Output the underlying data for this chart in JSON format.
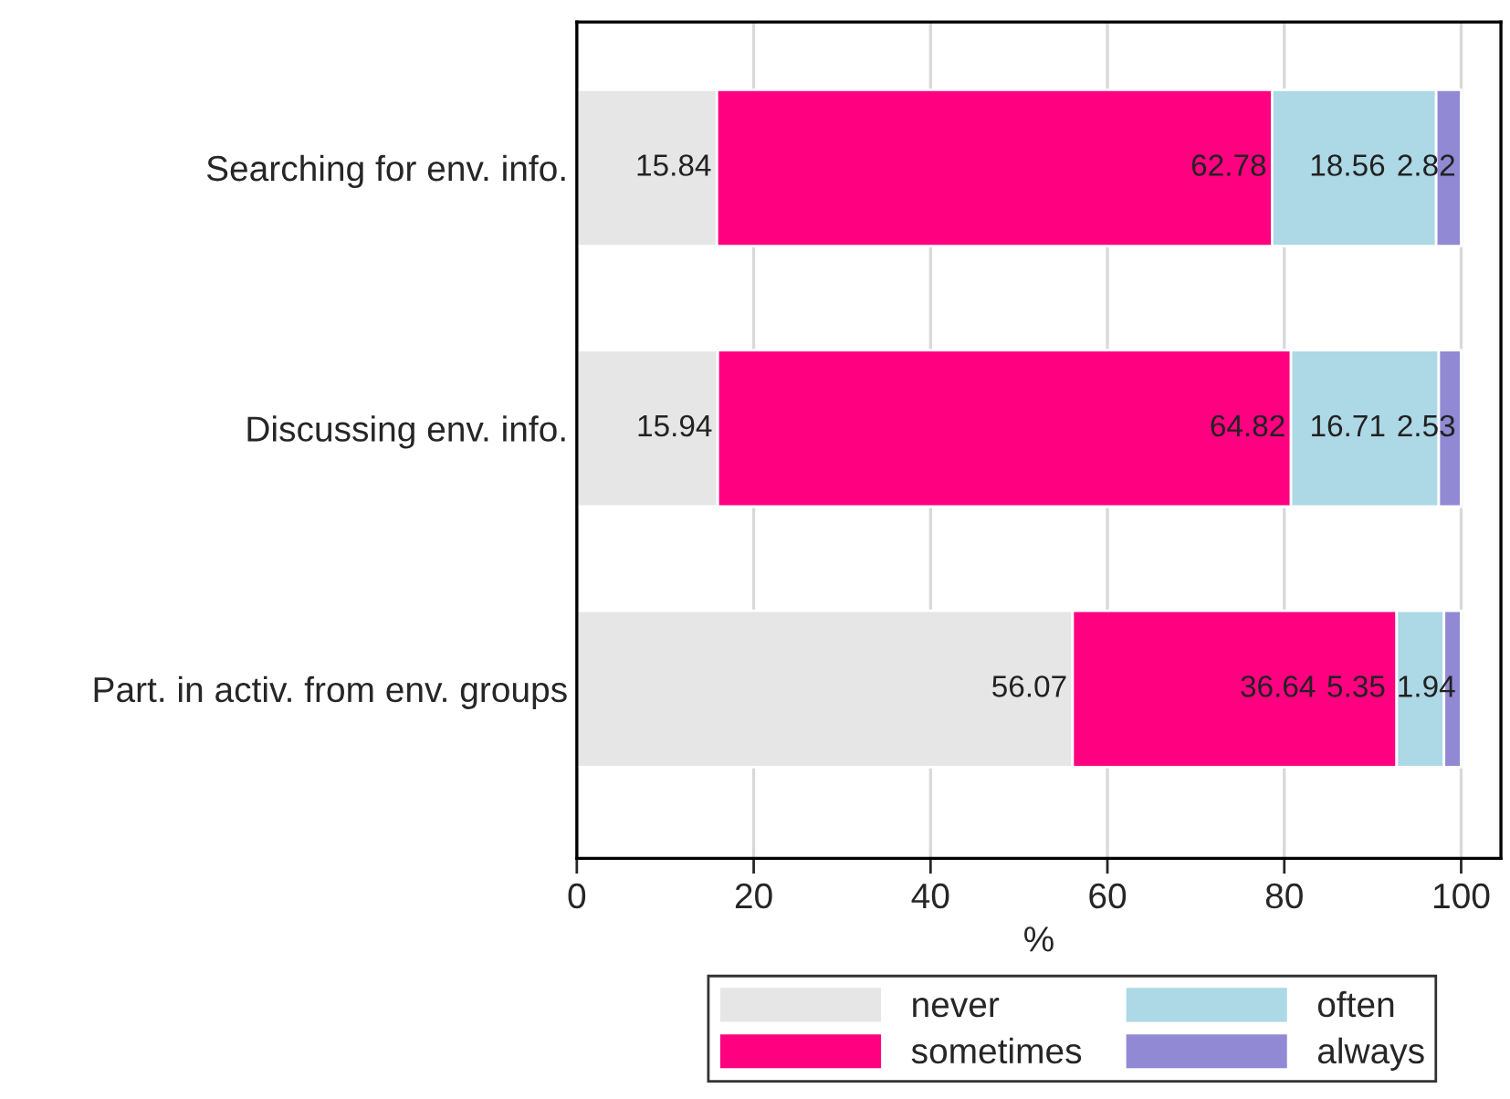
{
  "chart_data": {
    "type": "bar",
    "orientation": "horizontal",
    "stacked": true,
    "categories": [
      "Searching for env. info.",
      "Discussing env. info.",
      "Part. in activ. from env. groups"
    ],
    "series": [
      {
        "name": "never",
        "color": "#e6e6e6",
        "values": [
          15.84,
          15.94,
          56.07
        ]
      },
      {
        "name": "sometimes",
        "color": "#ff0080",
        "values": [
          62.78,
          64.82,
          36.64
        ]
      },
      {
        "name": "often",
        "color": "#add8e6",
        "values": [
          18.56,
          16.71,
          5.35
        ]
      },
      {
        "name": "always",
        "color": "#9189d4",
        "values": [
          2.82,
          2.53,
          1.94
        ]
      }
    ],
    "xlim": [
      0,
      104.5
    ],
    "xticks": [
      0,
      20,
      40,
      60,
      80,
      100
    ],
    "xlabel": "%",
    "grid": "x",
    "legend": "bottom",
    "data_labels": true
  }
}
